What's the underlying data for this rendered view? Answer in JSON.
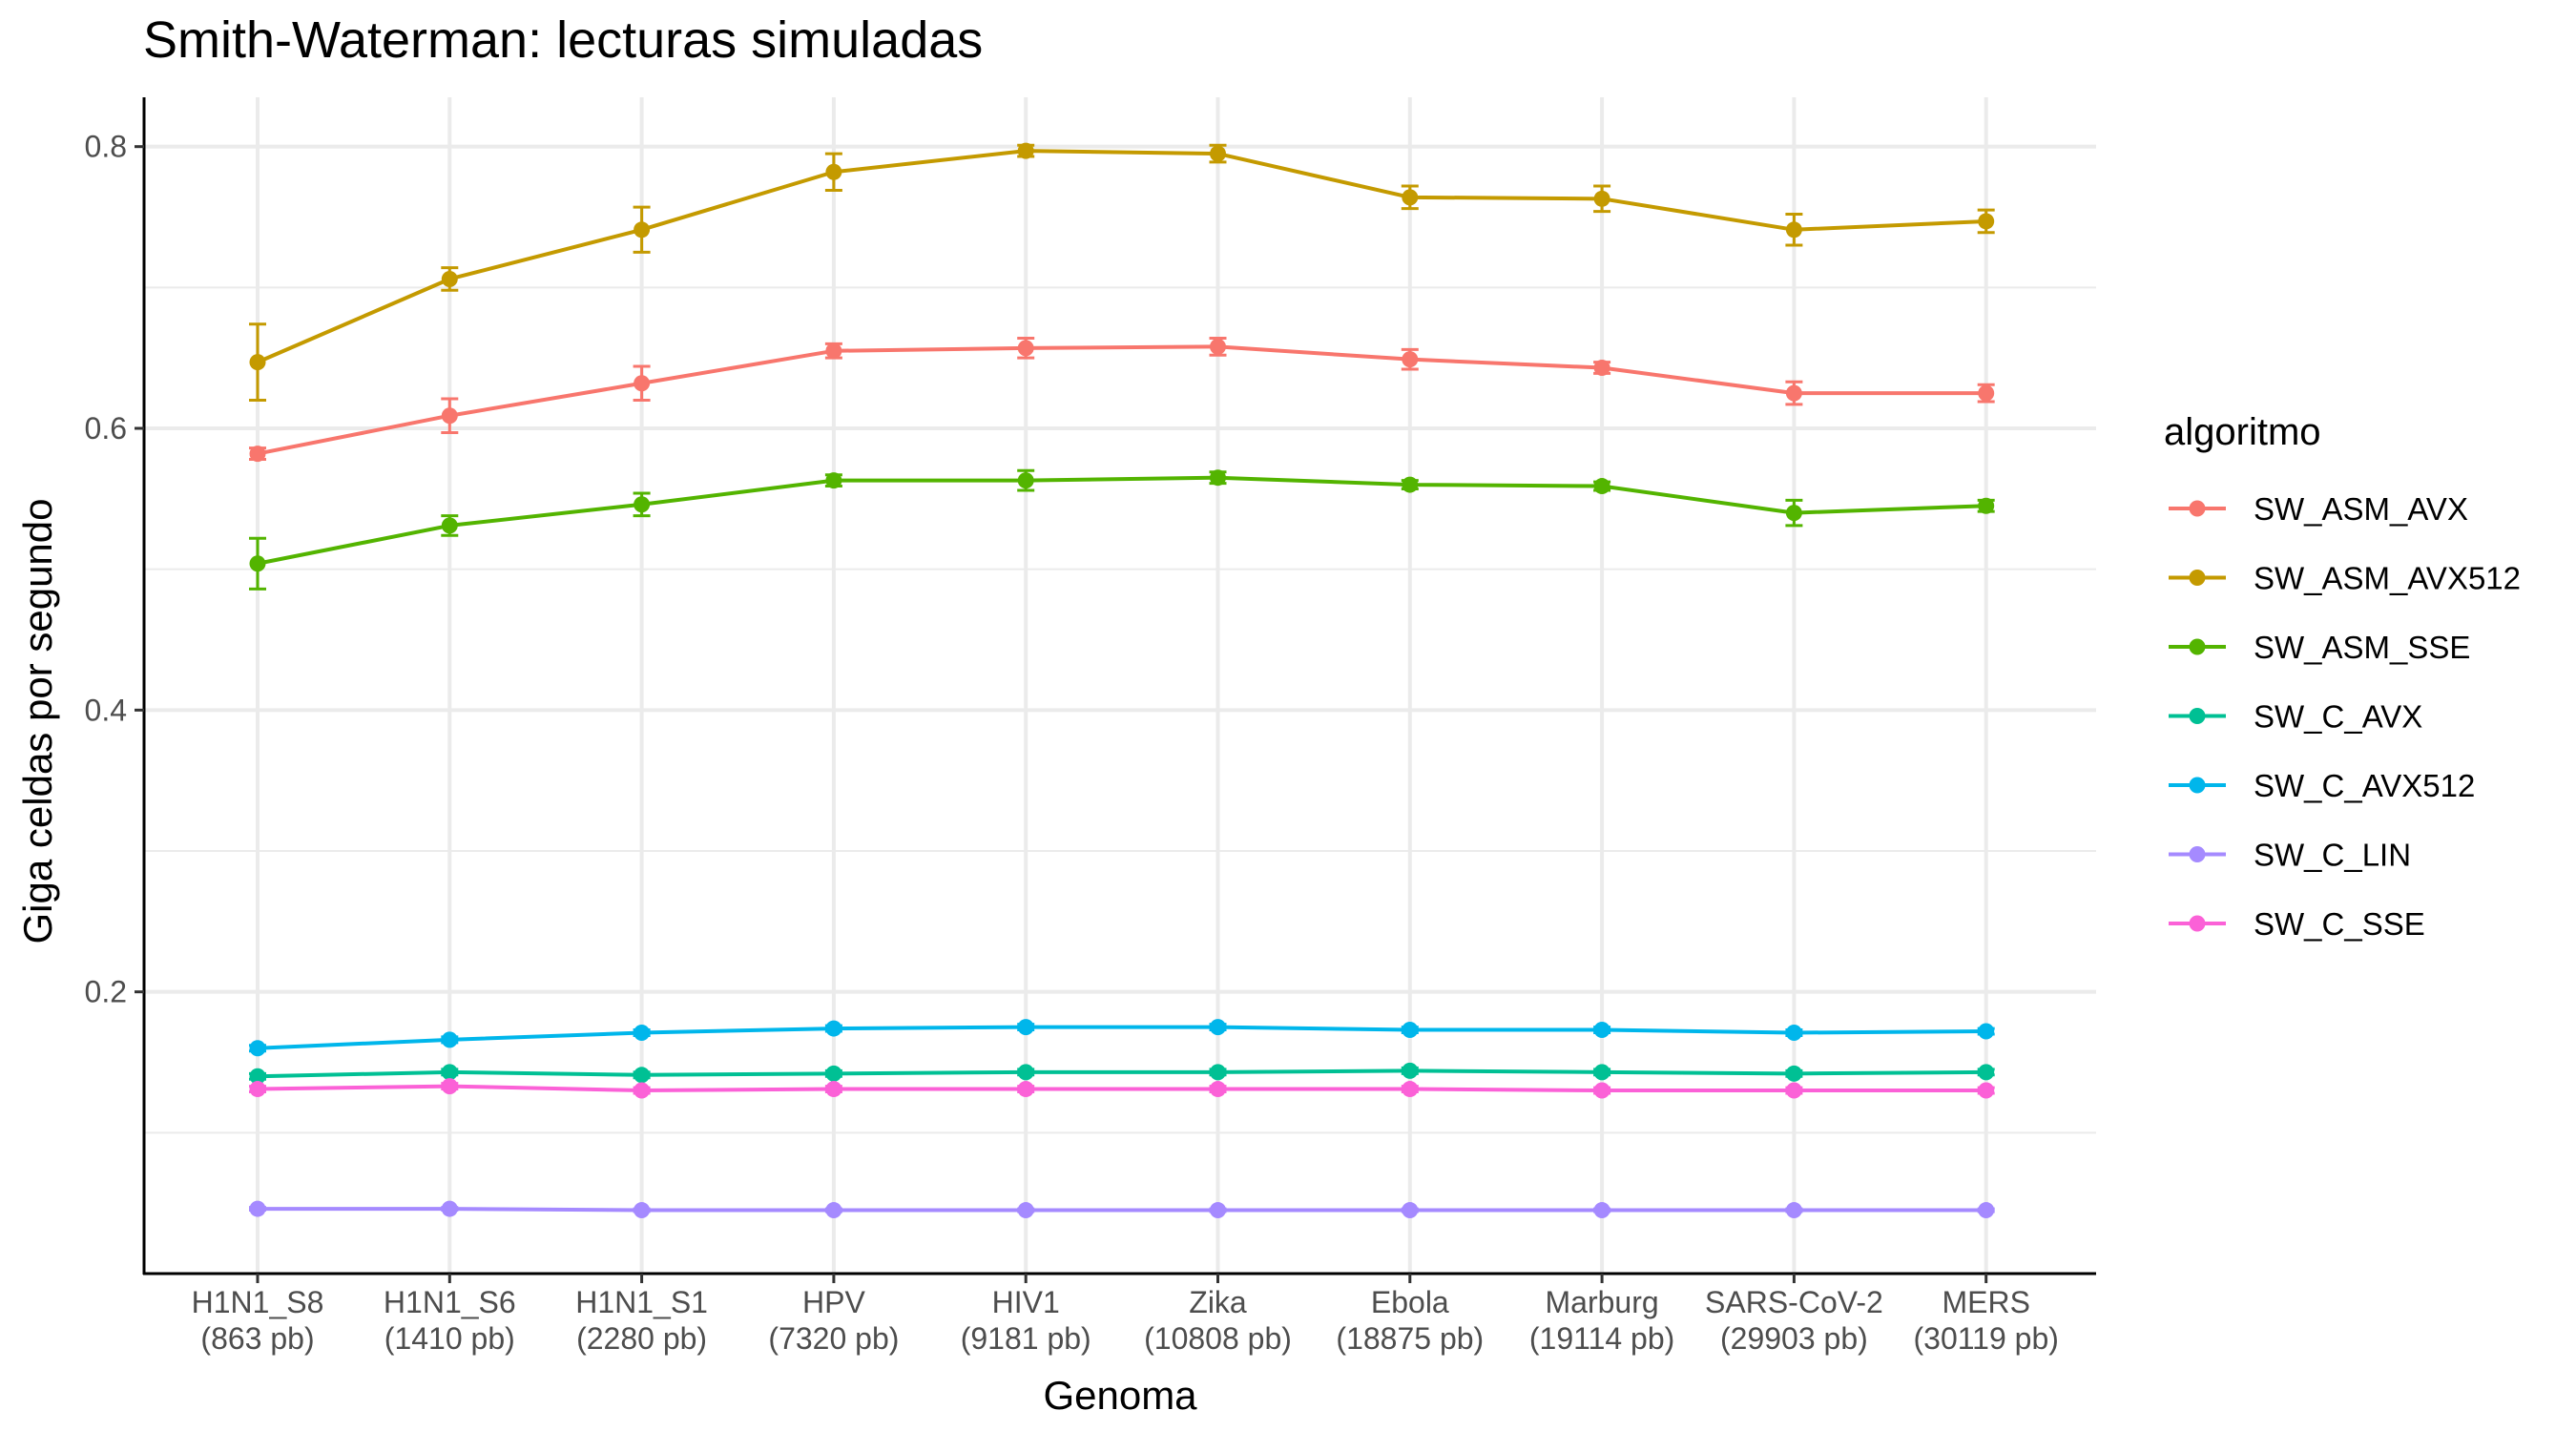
{
  "chart_data": {
    "type": "line",
    "title": "Smith-Waterman: lecturas simuladas",
    "xlabel": "Genoma",
    "ylabel": "Giga celdas por segundo",
    "categories": [
      "H1N1_S8",
      "H1N1_S6",
      "H1N1_S1",
      "HPV",
      "HIV1",
      "Zika",
      "Ebola",
      "Marburg",
      "SARS-CoV-2",
      "MERS"
    ],
    "category_sublabels": [
      "(863 pb)",
      "(1410 pb)",
      "(2280 pb)",
      "(7320 pb)",
      "(9181 pb)",
      "(10808 pb)",
      "(18875 pb)",
      "(19114 pb)",
      "(29903 pb)",
      "(30119 pb)"
    ],
    "ylim": [
      0.0,
      0.835
    ],
    "yticks": [
      0.2,
      0.4,
      0.6,
      0.8
    ],
    "ytick_labels": [
      "0.2",
      "0.4",
      "0.6",
      "0.8"
    ],
    "grid": true,
    "legend": {
      "title": "algoritmo",
      "position": "right"
    },
    "series": [
      {
        "name": "SW_ASM_AVX",
        "color": "#F8766D",
        "values": [
          0.582,
          0.609,
          0.632,
          0.655,
          0.657,
          0.658,
          0.649,
          0.643,
          0.625,
          0.625
        ],
        "errors": [
          0.004,
          0.012,
          0.012,
          0.005,
          0.007,
          0.006,
          0.007,
          0.004,
          0.008,
          0.006
        ]
      },
      {
        "name": "SW_ASM_AVX512",
        "color": "#C49A00",
        "values": [
          0.647,
          0.706,
          0.741,
          0.782,
          0.797,
          0.795,
          0.764,
          0.763,
          0.741,
          0.747
        ],
        "errors": [
          0.027,
          0.008,
          0.016,
          0.013,
          0.004,
          0.006,
          0.008,
          0.009,
          0.011,
          0.008
        ]
      },
      {
        "name": "SW_ASM_SSE",
        "color": "#53B400",
        "values": [
          0.504,
          0.531,
          0.546,
          0.563,
          0.563,
          0.565,
          0.56,
          0.559,
          0.54,
          0.545
        ],
        "errors": [
          0.018,
          0.007,
          0.008,
          0.004,
          0.007,
          0.004,
          0.003,
          0.003,
          0.009,
          0.004
        ]
      },
      {
        "name": "SW_C_AVX",
        "color": "#00C094",
        "values": [
          0.14,
          0.143,
          0.141,
          0.142,
          0.143,
          0.143,
          0.144,
          0.143,
          0.142,
          0.143
        ],
        "errors": [
          0.002,
          0.002,
          0.002,
          0.002,
          0.002,
          0.002,
          0.002,
          0.002,
          0.002,
          0.002
        ]
      },
      {
        "name": "SW_C_AVX512",
        "color": "#00B6EB",
        "values": [
          0.16,
          0.166,
          0.171,
          0.174,
          0.175,
          0.175,
          0.173,
          0.173,
          0.171,
          0.172
        ],
        "errors": [
          0.002,
          0.002,
          0.002,
          0.002,
          0.002,
          0.002,
          0.002,
          0.002,
          0.002,
          0.002
        ]
      },
      {
        "name": "SW_C_LIN",
        "color": "#A58AFF",
        "values": [
          0.046,
          0.046,
          0.045,
          0.045,
          0.045,
          0.045,
          0.045,
          0.045,
          0.045,
          0.045
        ],
        "errors": [
          0.001,
          0.001,
          0.001,
          0.001,
          0.001,
          0.001,
          0.001,
          0.001,
          0.001,
          0.001
        ]
      },
      {
        "name": "SW_C_SSE",
        "color": "#FB61D7",
        "values": [
          0.131,
          0.133,
          0.13,
          0.131,
          0.131,
          0.131,
          0.131,
          0.13,
          0.13,
          0.13
        ],
        "errors": [
          0.002,
          0.002,
          0.002,
          0.002,
          0.002,
          0.002,
          0.002,
          0.002,
          0.002,
          0.002
        ]
      }
    ]
  }
}
